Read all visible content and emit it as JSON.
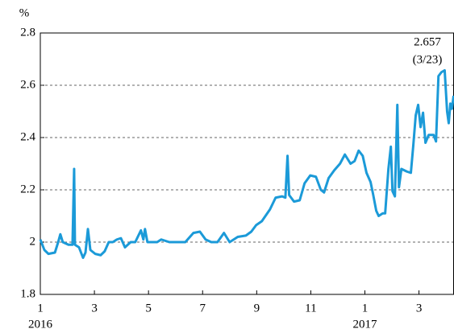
{
  "chart_data": {
    "type": "line",
    "y_unit": "%",
    "annotations": [
      "2.657",
      "(3/23)"
    ],
    "x": [
      0,
      0.15,
      0.3,
      0.54,
      0.66,
      0.74,
      0.83,
      1.04,
      1.19,
      1.25,
      1.28,
      1.43,
      1.58,
      1.67,
      1.76,
      1.85,
      2.03,
      2.23,
      2.38,
      2.53,
      2.68,
      2.83,
      2.98,
      3.13,
      3.34,
      3.51,
      3.72,
      3.81,
      3.87,
      3.96,
      4.32,
      4.47,
      4.77,
      5.06,
      5.36,
      5.66,
      5.9,
      6.11,
      6.32,
      6.55,
      6.79,
      7.0,
      7.3,
      7.6,
      7.8,
      7.98,
      8.19,
      8.49,
      8.7,
      8.94,
      9.06,
      9.14,
      9.2,
      9.38,
      9.59,
      9.77,
      9.98,
      10.19,
      10.37,
      10.49,
      10.66,
      10.87,
      11.08,
      11.26,
      11.47,
      11.62,
      11.77,
      11.92,
      12.06,
      12.21,
      12.3,
      12.42,
      12.51,
      12.66,
      12.75,
      12.87,
      12.96,
      13.02,
      13.11,
      13.2,
      13.26,
      13.35,
      13.55,
      13.7,
      13.79,
      13.88,
      13.97,
      14.06,
      14.15,
      14.24,
      14.36,
      14.54,
      14.63,
      14.72,
      14.83,
      14.95,
      15.04,
      15.1,
      15.16,
      15.22,
      15.28
    ],
    "series": [
      {
        "color": "#1b9ad8",
        "values": [
          2.01,
          1.97,
          1.955,
          1.96,
          2.0,
          2.03,
          2.0,
          1.99,
          1.99,
          2.28,
          1.99,
          1.98,
          1.94,
          1.96,
          2.05,
          1.97,
          1.955,
          1.95,
          1.965,
          2.0,
          2.0,
          2.01,
          2.015,
          1.98,
          2.0,
          2.0,
          2.045,
          2.01,
          2.05,
          2.0,
          2.0,
          2.01,
          2.0,
          2.0,
          2.0,
          2.035,
          2.04,
          2.01,
          2.0,
          2.0,
          2.035,
          2.0,
          2.02,
          2.025,
          2.04,
          2.065,
          2.08,
          2.125,
          2.17,
          2.175,
          2.17,
          2.33,
          2.18,
          2.155,
          2.16,
          2.225,
          2.255,
          2.25,
          2.2,
          2.19,
          2.245,
          2.275,
          2.3,
          2.335,
          2.3,
          2.31,
          2.35,
          2.33,
          2.265,
          2.23,
          2.185,
          2.12,
          2.1,
          2.11,
          2.11,
          2.28,
          2.365,
          2.195,
          2.175,
          2.525,
          2.21,
          2.28,
          2.27,
          2.265,
          2.37,
          2.485,
          2.525,
          2.44,
          2.495,
          2.38,
          2.41,
          2.41,
          2.385,
          2.635,
          2.65,
          2.657,
          2.5,
          2.455,
          2.53,
          2.51,
          2.56
        ]
      }
    ],
    "xlim": [
      0,
      15.28
    ],
    "xticks": [
      {
        "value": 0,
        "label": "1"
      },
      {
        "value": 2,
        "label": "3"
      },
      {
        "value": 4,
        "label": "5"
      },
      {
        "value": 6,
        "label": "7"
      },
      {
        "value": 8,
        "label": "9"
      },
      {
        "value": 10,
        "label": "11"
      },
      {
        "value": 12,
        "label": "1"
      },
      {
        "value": 14,
        "label": "3"
      }
    ],
    "year_labels": [
      {
        "value": 0,
        "label": "2016"
      },
      {
        "value": 12,
        "label": "2017"
      }
    ],
    "ylim": [
      1.8,
      2.8
    ],
    "yticks": [
      1.8,
      2,
      2.2,
      2.4,
      2.6,
      2.8
    ],
    "grid": true
  }
}
